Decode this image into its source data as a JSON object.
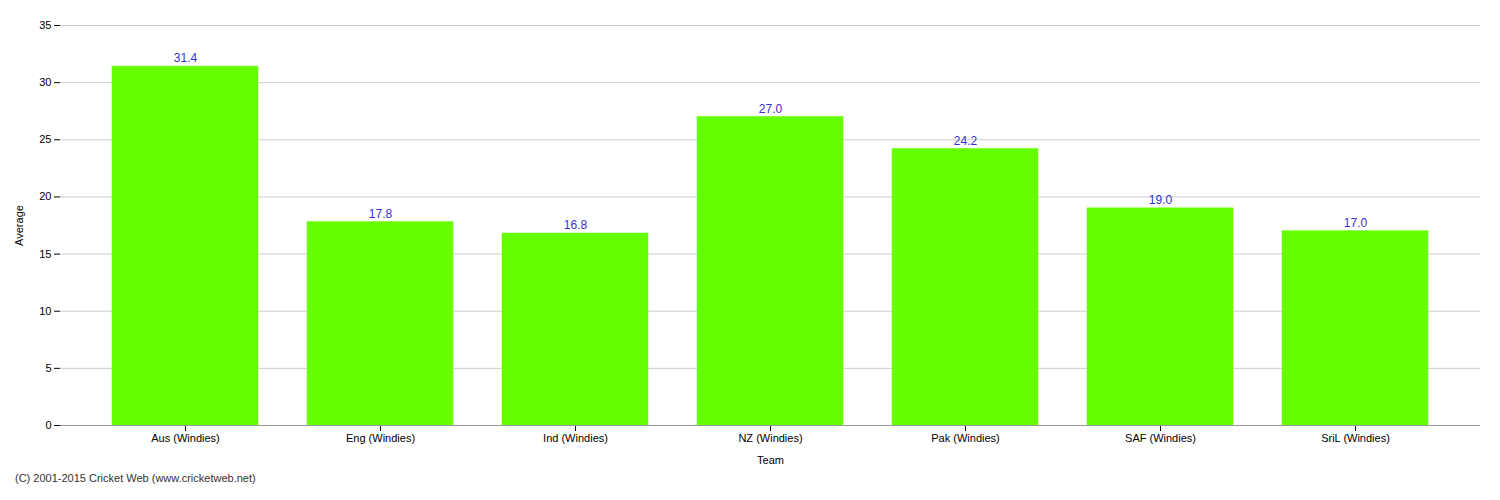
{
  "chart_data": {
    "type": "bar",
    "categories": [
      "Aus (Windies)",
      "Eng (Windies)",
      "Ind (Windies)",
      "NZ (Windies)",
      "Pak (Windies)",
      "SAF (Windies)",
      "SriL (Windies)"
    ],
    "values": [
      31.4,
      17.8,
      16.8,
      27.0,
      24.2,
      19.0,
      17.0
    ],
    "value_labels": [
      "31.4",
      "17.8",
      "16.8",
      "27.0",
      "24.2",
      "19.0",
      "17.0"
    ],
    "data_labels": true,
    "color": "#66ff00",
    "xlabel": "Team",
    "ylabel": "Average",
    "ylim": [
      0,
      35
    ],
    "yticks": [
      0,
      5,
      10,
      15,
      20,
      25,
      30,
      35
    ],
    "grid": true,
    "annotations": [
      "(C) 2001-2015 Cricket Web (www.cricketweb.net)"
    ]
  }
}
